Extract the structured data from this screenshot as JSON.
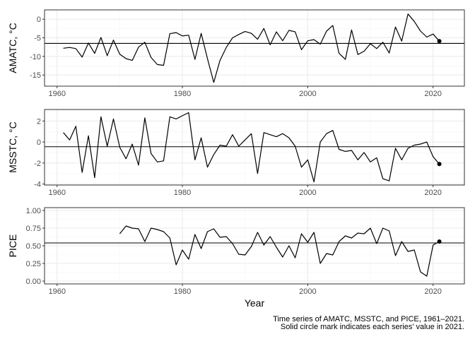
{
  "chart_data": [
    {
      "type": "line",
      "ylabel": "AMATC, °C",
      "xlim": [
        1958,
        2025
      ],
      "ylim": [
        -18,
        2.5
      ],
      "yticks": [
        0,
        -5,
        -10,
        -15
      ],
      "ytick_labels": [
        "0",
        "-5",
        "-10",
        "-15"
      ],
      "xticks": [
        1960,
        1980,
        2000,
        2020
      ],
      "xtick_labels": [
        "1960",
        "1980",
        "2000",
        "2020"
      ],
      "hline": -6.5,
      "x": [
        1961,
        1962,
        1963,
        1964,
        1965,
        1966,
        1967,
        1968,
        1969,
        1970,
        1971,
        1972,
        1973,
        1974,
        1975,
        1976,
        1977,
        1978,
        1979,
        1980,
        1981,
        1982,
        1983,
        1984,
        1985,
        1986,
        1987,
        1988,
        1989,
        1990,
        1991,
        1992,
        1993,
        1994,
        1995,
        1996,
        1997,
        1998,
        1999,
        2000,
        2001,
        2002,
        2003,
        2004,
        2005,
        2006,
        2007,
        2008,
        2009,
        2010,
        2011,
        2012,
        2013,
        2014,
        2015,
        2016,
        2017,
        2018,
        2019,
        2020,
        2021
      ],
      "y": [
        -7.8,
        -7.6,
        -7.9,
        -10.2,
        -6.4,
        -9.2,
        -4.9,
        -9.8,
        -5.6,
        -9.4,
        -10.6,
        -11.1,
        -7.5,
        -6.2,
        -10.3,
        -12.2,
        -12.4,
        -3.9,
        -3.6,
        -4.5,
        -4.3,
        -10.8,
        -3.8,
        -10.6,
        -17.0,
        -11.1,
        -7.6,
        -5.0,
        -4.1,
        -3.3,
        -3.8,
        -5.4,
        -2.5,
        -6.9,
        -3.4,
        -5.8,
        -3.0,
        -3.4,
        -8.2,
        -5.8,
        -5.5,
        -6.7,
        -3.2,
        -1.7,
        -9.2,
        -10.8,
        -2.9,
        -9.5,
        -8.6,
        -6.6,
        -7.9,
        -6.2,
        -9.1,
        -2.1,
        -5.9,
        1.4,
        -0.6,
        -3.2,
        -4.8,
        -4.0,
        -5.9
      ],
      "highlight": {
        "x": 2021,
        "y": -5.9
      }
    },
    {
      "type": "line",
      "ylabel": "MSSTC, °C",
      "xlim": [
        1958,
        2025
      ],
      "ylim": [
        -4.1,
        3.1
      ],
      "yticks": [
        2,
        0,
        -2,
        -4
      ],
      "ytick_labels": [
        "2",
        "0",
        "-2",
        "-4"
      ],
      "xticks": [
        1960,
        1980,
        2000,
        2020
      ],
      "xtick_labels": [
        "1960",
        "1980",
        "2000",
        "2020"
      ],
      "hline": -0.45,
      "x": [
        1961,
        1962,
        1963,
        1964,
        1965,
        1966,
        1967,
        1968,
        1969,
        1970,
        1971,
        1972,
        1973,
        1974,
        1975,
        1976,
        1977,
        1978,
        1979,
        1980,
        1981,
        1982,
        1983,
        1984,
        1985,
        1986,
        1987,
        1988,
        1989,
        1990,
        1991,
        1992,
        1993,
        1994,
        1995,
        1996,
        1997,
        1998,
        1999,
        2000,
        2001,
        2002,
        2003,
        2004,
        2005,
        2006,
        2007,
        2008,
        2009,
        2010,
        2011,
        2012,
        2013,
        2014,
        2015,
        2016,
        2017,
        2018,
        2019,
        2020,
        2021
      ],
      "y": [
        0.9,
        0.2,
        1.5,
        -2.9,
        0.6,
        -3.4,
        2.4,
        -0.4,
        2.2,
        -0.5,
        -1.6,
        -0.2,
        -2.2,
        2.3,
        -1.1,
        -1.9,
        -1.8,
        2.4,
        2.2,
        2.5,
        2.8,
        -1.7,
        0.4,
        -2.4,
        -1.2,
        -0.3,
        -0.4,
        0.7,
        -0.4,
        0.2,
        0.8,
        -3.0,
        0.9,
        0.7,
        0.5,
        0.8,
        0.4,
        -0.4,
        -2.4,
        -1.7,
        -3.8,
        0.0,
        0.8,
        1.1,
        -0.7,
        -0.9,
        -0.8,
        -1.7,
        -1.0,
        -1.9,
        -1.5,
        -3.5,
        -3.7,
        -0.6,
        -1.7,
        -0.6,
        -0.3,
        -0.2,
        0.0,
        -1.4,
        -2.1
      ],
      "highlight": {
        "x": 2021,
        "y": -2.1
      }
    },
    {
      "type": "line",
      "ylabel": "PICE",
      "xlabel": "Year",
      "xlim": [
        1958,
        2025
      ],
      "ylim": [
        -0.04,
        1.04
      ],
      "yticks": [
        1.0,
        0.75,
        0.5,
        0.25,
        0.0
      ],
      "ytick_labels": [
        "1.00",
        "0.75",
        "0.50",
        "0.25",
        "0.00"
      ],
      "xticks": [
        1960,
        1980,
        2000,
        2020
      ],
      "xtick_labels": [
        "1960",
        "1980",
        "2000",
        "2020"
      ],
      "hline": 0.54,
      "x": [
        1970,
        1971,
        1972,
        1973,
        1974,
        1975,
        1976,
        1977,
        1978,
        1979,
        1980,
        1981,
        1982,
        1983,
        1984,
        1985,
        1986,
        1987,
        1988,
        1989,
        1990,
        1991,
        1992,
        1993,
        1994,
        1995,
        1996,
        1997,
        1998,
        1999,
        2000,
        2001,
        2002,
        2003,
        2004,
        2005,
        2006,
        2007,
        2008,
        2009,
        2010,
        2011,
        2012,
        2013,
        2014,
        2015,
        2016,
        2017,
        2018,
        2019,
        2020,
        2021
      ],
      "y": [
        0.67,
        0.78,
        0.75,
        0.74,
        0.56,
        0.75,
        0.73,
        0.7,
        0.61,
        0.23,
        0.44,
        0.31,
        0.66,
        0.46,
        0.7,
        0.74,
        0.62,
        0.63,
        0.53,
        0.38,
        0.37,
        0.49,
        0.69,
        0.51,
        0.63,
        0.48,
        0.34,
        0.5,
        0.33,
        0.67,
        0.55,
        0.69,
        0.25,
        0.39,
        0.37,
        0.56,
        0.64,
        0.61,
        0.68,
        0.67,
        0.75,
        0.53,
        0.75,
        0.71,
        0.36,
        0.56,
        0.42,
        0.44,
        0.13,
        0.07,
        0.51,
        0.56
      ],
      "highlight": {
        "x": 2021,
        "y": 0.56
      }
    }
  ],
  "caption": {
    "line1": "Time series of AMATC, MSSTC, and PICE, 1961–2021.",
    "line2": "Solid circle mark indicates each series' value in 2021."
  },
  "colors": {
    "panel_border": "#333333",
    "grid_major": "#ebebeb",
    "grid_minor": "#f5f5f5",
    "line": "#000000"
  }
}
